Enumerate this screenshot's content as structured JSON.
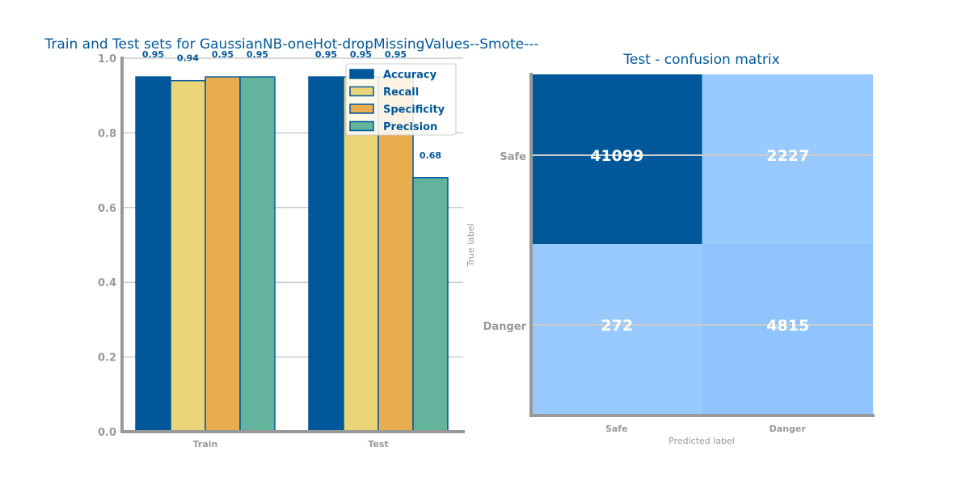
{
  "chart_data": [
    {
      "type": "bar",
      "title": "Train and Test sets for GaussianNB-oneHot-dropMissingValues--Smote---",
      "categories": [
        "Train",
        "Test"
      ],
      "series": [
        {
          "name": "Accuracy",
          "values": [
            0.95,
            0.95
          ],
          "labels": [
            "0.95",
            "0.95"
          ],
          "color": "#00589b"
        },
        {
          "name": "Recall",
          "values": [
            0.94,
            0.95
          ],
          "labels": [
            "0.94",
            "0.95"
          ],
          "color": "#ebd579"
        },
        {
          "name": "Specificity",
          "values": [
            0.95,
            0.95
          ],
          "labels": [
            "0.95",
            "0.95"
          ],
          "color": "#e8ad4e"
        },
        {
          "name": "Precision",
          "values": [
            0.95,
            0.68
          ],
          "labels": [
            "0.95",
            "0.68"
          ],
          "color": "#63b39d"
        }
      ],
      "yticks": [
        "0.0",
        "0.2",
        "0.4",
        "0.6",
        "0.8",
        "1.0"
      ],
      "ylim": [
        0,
        1
      ],
      "grid": true,
      "legend": "top-right",
      "xlabel": "",
      "ylabel": ""
    },
    {
      "type": "heatmap",
      "title": "Test - confusion matrix",
      "rows": [
        "Safe",
        "Danger"
      ],
      "cols": [
        "Safe",
        "Danger"
      ],
      "values": [
        [
          41099,
          2227
        ],
        [
          272,
          4815
        ]
      ],
      "xlabel": "Predicted label",
      "ylabel": "True label",
      "colors": [
        [
          "#00589b",
          "#99caff"
        ],
        [
          "#99caff",
          "#8fc4ff"
        ]
      ]
    }
  ]
}
